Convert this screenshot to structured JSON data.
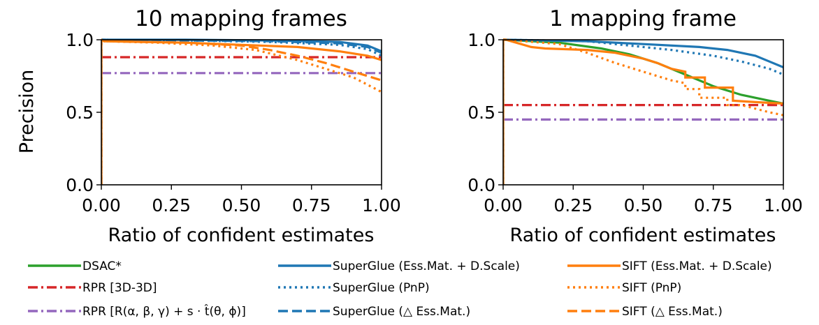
{
  "colors": {
    "dsac": "#2ca02c",
    "superglue": "#1f77b4",
    "sift": "#ff7f0e",
    "rpr_3d": "#d62728",
    "rpr_rot": "#9467bd"
  },
  "legend": [
    {
      "label": "DSAC*",
      "color": "#2ca02c",
      "style": "solid"
    },
    {
      "label": "RPR [3D-3D]",
      "color": "#d62728",
      "style": "dashdot"
    },
    {
      "label": "RPR [R(α, β, γ) + s · t̂(θ, ϕ)]",
      "color": "#9467bd",
      "style": "dashdot"
    },
    {
      "label": "SuperGlue (Ess.Mat. + D.Scale)",
      "color": "#1f77b4",
      "style": "solid"
    },
    {
      "label": "SuperGlue (PnP)",
      "color": "#1f77b4",
      "style": "dotted"
    },
    {
      "label": "SuperGlue (△ Ess.Mat.)",
      "color": "#1f77b4",
      "style": "dashed"
    },
    {
      "label": "SIFT (Ess.Mat. + D.Scale)",
      "color": "#ff7f0e",
      "style": "solid"
    },
    {
      "label": "SIFT (PnP)",
      "color": "#ff7f0e",
      "style": "dotted"
    },
    {
      "label": "SIFT (△ Ess.Mat.)",
      "color": "#ff7f0e",
      "style": "dashed"
    }
  ],
  "chart_data": [
    {
      "type": "line",
      "title": "10 mapping frames",
      "xlabel": "Ratio of confident estimates",
      "ylabel": "Precision",
      "xlim": [
        0,
        1
      ],
      "ylim": [
        0,
        1
      ],
      "xticks": [
        "0.00",
        "0.25",
        "0.50",
        "0.75",
        "1.00"
      ],
      "yticks": [
        "0.0",
        "0.5",
        "1.0"
      ],
      "series": [
        {
          "name": "RPR [3D-3D]",
          "color": "#d62728",
          "style": "dashdot",
          "x": [
            0,
            1
          ],
          "y": [
            0.88,
            0.88
          ]
        },
        {
          "name": "RPR [R(α, β, γ) + s · t̂(θ, ϕ)]",
          "color": "#9467bd",
          "style": "dashdot",
          "x": [
            0,
            1
          ],
          "y": [
            0.77,
            0.77
          ]
        },
        {
          "name": "SuperGlue (Ess.Mat. + D.Scale)",
          "color": "#1f77b4",
          "style": "solid",
          "x": [
            0,
            0.01,
            0.3,
            0.6,
            0.85,
            0.95,
            1.0
          ],
          "y": [
            1.0,
            1.0,
            1.0,
            0.995,
            0.985,
            0.96,
            0.92
          ]
        },
        {
          "name": "SuperGlue (PnP)",
          "color": "#1f77b4",
          "style": "dotted",
          "x": [
            0,
            0.01,
            0.3,
            0.6,
            0.85,
            0.95,
            1.0
          ],
          "y": [
            1.0,
            1.0,
            0.995,
            0.985,
            0.965,
            0.935,
            0.89
          ]
        },
        {
          "name": "SuperGlue (△ Ess.Mat.)",
          "color": "#1f77b4",
          "style": "dashed",
          "x": [
            0,
            0.01,
            0.3,
            0.6,
            0.85,
            0.95,
            1.0
          ],
          "y": [
            1.0,
            1.0,
            0.995,
            0.99,
            0.975,
            0.95,
            0.91
          ]
        },
        {
          "name": "SIFT (Ess.Mat. + D.Scale)",
          "color": "#ff7f0e",
          "style": "solid",
          "x": [
            0,
            0.01,
            0.3,
            0.5,
            0.7,
            0.85,
            0.95,
            1.0
          ],
          "y": [
            1.0,
            0.99,
            0.98,
            0.965,
            0.95,
            0.92,
            0.89,
            0.86
          ]
        },
        {
          "name": "SIFT (PnP)",
          "color": "#ff7f0e",
          "style": "dotted",
          "x": [
            0,
            0.01,
            0.2,
            0.4,
            0.55,
            0.7,
            0.8,
            0.9,
            0.95,
            1.0
          ],
          "y": [
            1.0,
            0.99,
            0.98,
            0.96,
            0.93,
            0.86,
            0.8,
            0.74,
            0.69,
            0.64
          ]
        },
        {
          "name": "SIFT (△ Ess.Mat.)",
          "color": "#ff7f0e",
          "style": "dashed",
          "x": [
            0,
            0.01,
            0.3,
            0.5,
            0.6,
            0.7,
            0.8,
            0.9,
            1.0
          ],
          "y": [
            1.0,
            0.99,
            0.98,
            0.96,
            0.93,
            0.89,
            0.84,
            0.78,
            0.72
          ]
        }
      ]
    },
    {
      "type": "line",
      "title": "1 mapping frame",
      "xlabel": "Ratio of confident estimates",
      "ylabel": "",
      "xlim": [
        0,
        1
      ],
      "ylim": [
        0,
        1
      ],
      "xticks": [
        "0.00",
        "0.25",
        "0.50",
        "0.75",
        "1.00"
      ],
      "yticks": [
        "0.0",
        "0.5",
        "1.0"
      ],
      "series": [
        {
          "name": "RPR [3D-3D]",
          "color": "#d62728",
          "style": "dashdot",
          "x": [
            0,
            1
          ],
          "y": [
            0.55,
            0.55
          ]
        },
        {
          "name": "RPR [R(α, β, γ) + s · t̂(θ, ϕ)]",
          "color": "#9467bd",
          "style": "dashdot",
          "x": [
            0,
            1
          ],
          "y": [
            0.45,
            0.45
          ]
        },
        {
          "name": "DSAC*",
          "color": "#2ca02c",
          "style": "solid",
          "x": [
            0,
            0.01,
            0.2,
            0.35,
            0.45,
            0.55,
            0.65,
            0.75,
            0.85,
            0.95,
            1.0
          ],
          "y": [
            1.0,
            1.0,
            0.98,
            0.94,
            0.9,
            0.84,
            0.76,
            0.68,
            0.62,
            0.58,
            0.56
          ]
        },
        {
          "name": "SuperGlue (Ess.Mat. + D.Scale)",
          "color": "#1f77b4",
          "style": "solid",
          "x": [
            0,
            0.01,
            0.3,
            0.5,
            0.7,
            0.8,
            0.9,
            0.95,
            1.0
          ],
          "y": [
            1.0,
            1.0,
            0.99,
            0.97,
            0.95,
            0.93,
            0.89,
            0.85,
            0.81
          ]
        },
        {
          "name": "SuperGlue (PnP)",
          "color": "#1f77b4",
          "style": "dotted",
          "x": [
            0,
            0.01,
            0.3,
            0.45,
            0.6,
            0.75,
            0.85,
            0.95,
            1.0
          ],
          "y": [
            1.0,
            1.0,
            0.99,
            0.96,
            0.93,
            0.89,
            0.85,
            0.8,
            0.76
          ]
        },
        {
          "name": "SIFT (Ess.Mat. + D.Scale)",
          "color": "#ff7f0e",
          "style": "solid",
          "x": [
            0,
            0.01,
            0.1,
            0.15,
            0.3,
            0.4,
            0.5,
            0.55,
            0.6,
            0.65,
            0.65,
            0.72,
            0.72,
            0.82,
            0.82,
            0.9,
            1.0
          ],
          "y": [
            1.0,
            1.0,
            0.95,
            0.94,
            0.93,
            0.91,
            0.87,
            0.84,
            0.8,
            0.78,
            0.74,
            0.74,
            0.67,
            0.67,
            0.58,
            0.57,
            0.56
          ]
        },
        {
          "name": "SIFT (PnP)",
          "color": "#ff7f0e",
          "style": "dotted",
          "x": [
            0,
            0.01,
            0.2,
            0.3,
            0.4,
            0.5,
            0.55,
            0.6,
            0.65,
            0.65,
            0.7,
            0.7,
            0.8,
            0.8,
            0.85,
            0.95,
            1.0
          ],
          "y": [
            1.0,
            1.0,
            0.97,
            0.91,
            0.84,
            0.78,
            0.75,
            0.72,
            0.7,
            0.66,
            0.66,
            0.6,
            0.6,
            0.55,
            0.55,
            0.5,
            0.48
          ]
        }
      ]
    }
  ]
}
